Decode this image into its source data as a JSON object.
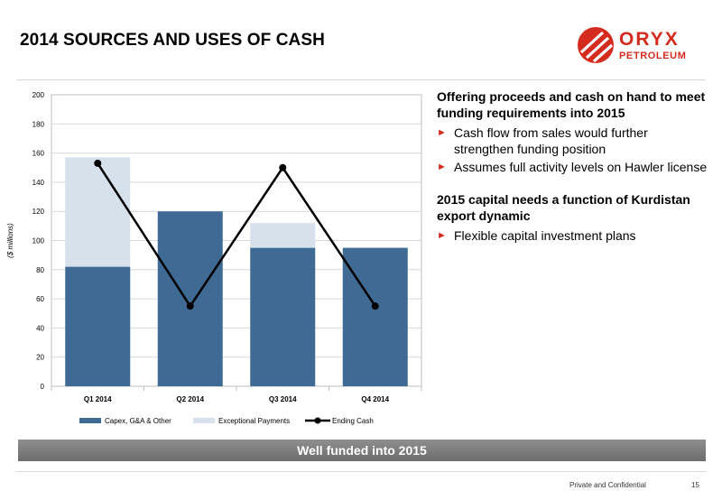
{
  "header": {
    "title": "2014 SOURCES AND USES OF CASH",
    "logo": {
      "word1": "ORYX",
      "word2": "PETROLEUM",
      "color": "#d52b1e"
    }
  },
  "chart_data": {
    "type": "bar",
    "stacked": true,
    "categories": [
      "Q1 2014",
      "Q2 2014",
      "Q3 2014",
      "Q4 2014"
    ],
    "series": [
      {
        "name": "Capex, G&A & Other",
        "kind": "bar",
        "color": "#3e6a94",
        "values": [
          82,
          120,
          95,
          95
        ]
      },
      {
        "name": "Exceptional Payments",
        "kind": "bar",
        "color": "#d6e1ec",
        "values": [
          75,
          0,
          17,
          0
        ]
      },
      {
        "name": "Ending Cash",
        "kind": "line",
        "color": "#000000",
        "values": [
          153,
          55,
          150,
          55
        ]
      }
    ],
    "title": "",
    "xlabel": "",
    "ylabel": "($ millions)",
    "ylim": [
      0,
      200
    ],
    "yticks": [
      0,
      20,
      40,
      60,
      80,
      100,
      120,
      140,
      160,
      180,
      200
    ],
    "grid": true,
    "legend": "bottom"
  },
  "commentary": {
    "sections": [
      {
        "heading": "Offering proceeds and cash on hand to meet funding requirements into 2015",
        "bullets": [
          "Cash flow from sales would further strengthen funding position",
          "Assumes full activity levels on Hawler license"
        ]
      },
      {
        "heading": "2015 capital needs a function of Kurdistan export dynamic",
        "bullets": [
          "Flexible capital investment plans"
        ]
      }
    ],
    "bullet_glyph": "►"
  },
  "banner": {
    "text": "Well funded into 2015"
  },
  "footer": {
    "confidential": "Private and Confidential",
    "page": "15"
  }
}
